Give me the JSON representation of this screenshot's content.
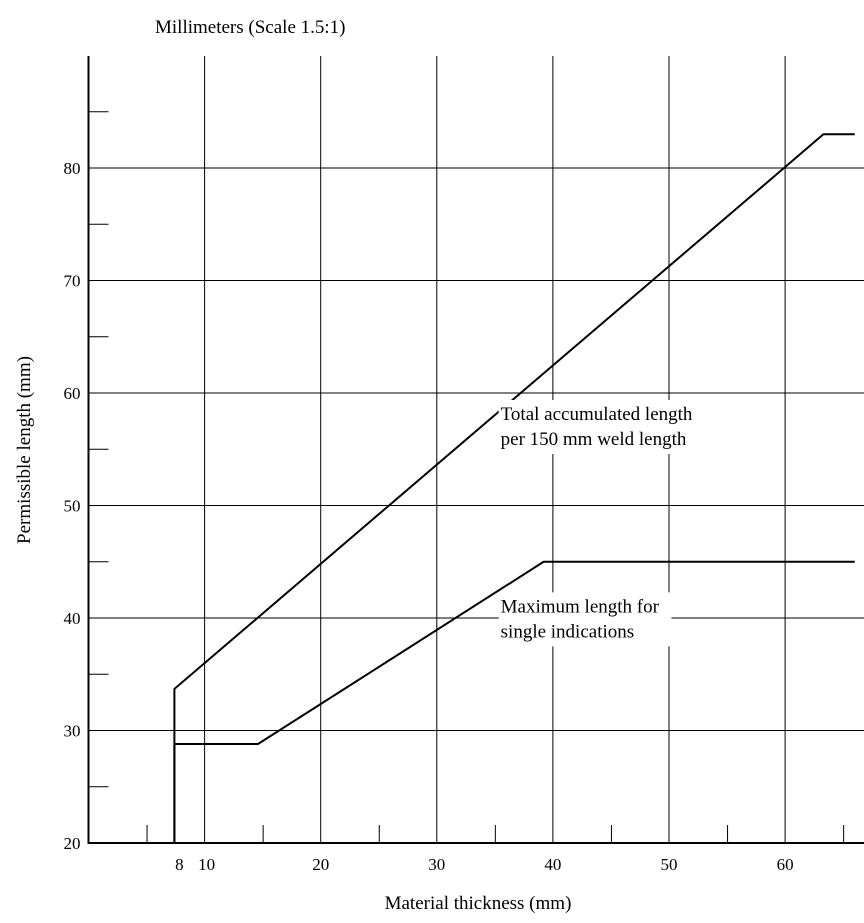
{
  "chart_data": {
    "type": "line",
    "subtitle": "Millimeters (Scale 1.5:1)",
    "xlabel": "Material thickness (mm)",
    "ylabel": "Permissible length (mm)",
    "xlim": [
      0,
      66
    ],
    "ylim": [
      20,
      90
    ],
    "grid": true,
    "x_ticks": [
      {
        "value": 8,
        "label": "8"
      },
      {
        "value": 10,
        "label": "10"
      },
      {
        "value": 20,
        "label": "20"
      },
      {
        "value": 30,
        "label": "30"
      },
      {
        "value": 40,
        "label": "40"
      },
      {
        "value": 50,
        "label": "50"
      },
      {
        "value": 60,
        "label": "60"
      }
    ],
    "x_major_grid": [
      10,
      20,
      30,
      40,
      50,
      60
    ],
    "x_minor_ticks": [
      5,
      15,
      25,
      35,
      45,
      55,
      65
    ],
    "y_ticks": [
      20,
      30,
      40,
      50,
      60,
      70,
      80
    ],
    "y_minor_ticks": [
      25,
      35,
      45,
      55,
      65,
      75,
      85
    ],
    "series": [
      {
        "name": "Total accumulated length per 150 mm weld length",
        "label_lines": [
          "Total accumulated length",
          "per 150 mm weld length"
        ],
        "label_anchor": [
          35.5,
          57.6
        ],
        "x": [
          7.4,
          7.4,
          63.3,
          66
        ],
        "y": [
          20,
          33.7,
          83,
          83
        ]
      },
      {
        "name": "Maximum length for single indications",
        "label_lines": [
          "Maximum length for",
          "single indications"
        ],
        "label_anchor": [
          35.5,
          40.5
        ],
        "x": [
          7.4,
          7.4,
          14.6,
          39.2,
          66
        ],
        "y": [
          20,
          28.8,
          28.8,
          45,
          45
        ]
      }
    ]
  }
}
